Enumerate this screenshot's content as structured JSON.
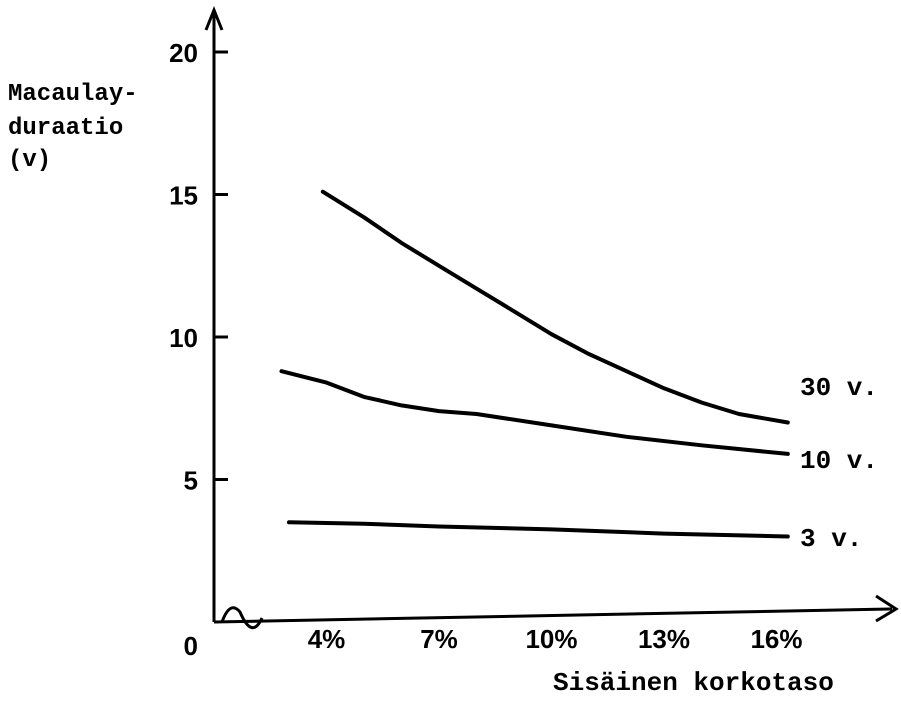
{
  "chart_data": {
    "type": "line",
    "title": "",
    "ylabel_lines": [
      "Macaulay-",
      "duraatio",
      "(v)"
    ],
    "xlabel": "Sisäinen korkotaso",
    "x_ticks": [
      {
        "value": 4,
        "label": "4%"
      },
      {
        "value": 7,
        "label": "7%"
      },
      {
        "value": 10,
        "label": "10%"
      },
      {
        "value": 13,
        "label": "13%"
      },
      {
        "value": 16,
        "label": "16%"
      }
    ],
    "y_ticks": [
      {
        "value": 0,
        "label": "0"
      },
      {
        "value": 5,
        "label": "5"
      },
      {
        "value": 10,
        "label": "10"
      },
      {
        "value": 15,
        "label": "15"
      },
      {
        "value": 20,
        "label": "20"
      }
    ],
    "xlim": [
      1,
      18.5
    ],
    "ylim": [
      0,
      21
    ],
    "grid": false,
    "series": [
      {
        "name": "30 v.",
        "x": [
          3.9,
          5,
          6,
          7,
          8,
          9,
          10,
          11,
          12,
          13,
          14,
          15,
          16.3
        ],
        "y": [
          15.1,
          14.2,
          13.3,
          12.5,
          11.7,
          10.9,
          10.1,
          9.4,
          8.8,
          8.2,
          7.7,
          7.3,
          7.0
        ]
      },
      {
        "name": "10 v.",
        "x": [
          2.8,
          4,
          5,
          6,
          7,
          8,
          10,
          12,
          14,
          16.3
        ],
        "y": [
          8.8,
          8.4,
          7.9,
          7.6,
          7.4,
          7.3,
          6.9,
          6.5,
          6.2,
          5.9
        ]
      },
      {
        "name": "3 v.",
        "x": [
          3.0,
          5,
          7,
          10,
          13,
          16.3
        ],
        "y": [
          3.5,
          3.45,
          3.35,
          3.25,
          3.1,
          3.0
        ]
      }
    ]
  }
}
